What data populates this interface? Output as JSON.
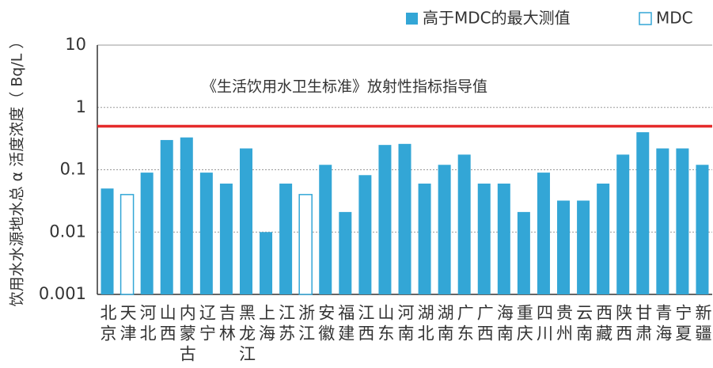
{
  "chart_data": {
    "type": "bar",
    "log_scale": true,
    "y_label": "饮用水水源地水总 α 活度浓度（ Bq/L ）",
    "categories": [
      "北京",
      "天津",
      "河北",
      "山西",
      "内蒙古",
      "辽宁",
      "吉林",
      "黑龙江",
      "上海",
      "江苏",
      "浙江",
      "安徽",
      "福建",
      "江西",
      "山东",
      "河南",
      "湖北",
      "湖南",
      "广东",
      "广西",
      "海南",
      "重庆",
      "四川",
      "贵州",
      "云南",
      "西藏",
      "陕西",
      "甘肃",
      "青海",
      "宁夏",
      "新疆"
    ],
    "series": [
      {
        "name": "高于MDC的最大测值",
        "color": "#33a6d6",
        "hollow": false,
        "values": [
          0.05,
          null,
          0.09,
          0.3,
          0.33,
          0.09,
          0.06,
          0.22,
          0.01,
          0.06,
          null,
          0.12,
          0.021,
          0.082,
          0.25,
          0.26,
          0.06,
          0.12,
          0.175,
          0.06,
          0.06,
          0.021,
          0.09,
          0.032,
          0.032,
          0.06,
          0.175,
          0.4,
          0.22,
          0.22,
          0.12
        ]
      },
      {
        "name": "MDC",
        "color": "#33a6d6",
        "hollow": true,
        "values": [
          null,
          0.04,
          null,
          null,
          null,
          null,
          null,
          null,
          null,
          null,
          0.04,
          null,
          null,
          null,
          null,
          null,
          null,
          null,
          null,
          null,
          null,
          null,
          null,
          null,
          null,
          null,
          null,
          null,
          null,
          null,
          null
        ]
      }
    ],
    "reference_line": {
      "value": 0.5,
      "label": "《生活饮用水卫生标准》放射性指标指导值",
      "color": "#e52b2b"
    },
    "ylim": [
      0.001,
      10
    ],
    "yticks": [
      0.001,
      0.01,
      0.1,
      1,
      10
    ],
    "grid": true
  }
}
